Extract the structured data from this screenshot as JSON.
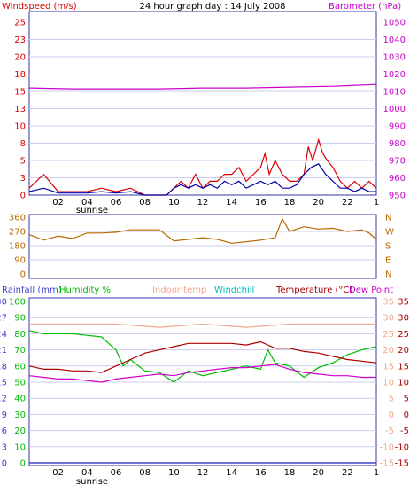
{
  "title": "24 hour graph day : 14 July 2008",
  "colors": {
    "wind": "#dd0000",
    "gust_avg": "#0000aa",
    "baro": "#cc00cc",
    "dir": "#b86800",
    "humidity": "#00bb00",
    "temperature": "#aa0000",
    "dewpoint": "#cc00cc",
    "indoor": "#f0a890",
    "windchill": "#00bbbb",
    "rain": "#4444cc",
    "frame": "#3333aa",
    "grid": "#ccccee"
  },
  "chart_data": [
    {
      "type": "line",
      "name": "wind-barometer",
      "left_label": "Windspeed (m/s)",
      "right_label": "Barometer (hPa)",
      "left_ticks": [
        "25",
        "23",
        "20",
        "18",
        "15",
        "13",
        "10",
        "8",
        "5",
        "3",
        "0"
      ],
      "right_ticks": [
        "1050",
        "1040",
        "1030",
        "1020",
        "1010",
        "1000",
        "990",
        "980",
        "970",
        "960",
        "950"
      ],
      "x_ticks": [
        "02",
        "04",
        "06",
        "08",
        "10",
        "12",
        "14",
        "16",
        "18",
        "20",
        "22",
        "1"
      ],
      "sunrise_label": "sunrise",
      "ylim": [
        0,
        25
      ],
      "y2lim": [
        950,
        1050
      ],
      "series": [
        {
          "role": "wind",
          "x": [
            0,
            1,
            2,
            3,
            4,
            5,
            6,
            7,
            8,
            9,
            9.5,
            10,
            10.5,
            11,
            11.5,
            12,
            12.5,
            13,
            13.5,
            14,
            14.5,
            15,
            15.5,
            16,
            16.3,
            16.6,
            17,
            17.5,
            18,
            18.5,
            19,
            19.3,
            19.6,
            20,
            20.3,
            20.6,
            21,
            21.5,
            22,
            22.5,
            23,
            23.5,
            24
          ],
          "y": [
            1,
            3,
            0.5,
            0.5,
            0.5,
            1,
            0.5,
            1,
            0,
            0,
            0,
            1,
            2,
            1,
            3,
            1,
            2,
            2,
            3,
            3,
            4,
            2,
            3,
            4,
            6,
            3,
            5,
            3,
            2,
            2,
            3,
            7,
            5,
            8,
            6,
            5,
            4,
            2,
            1,
            2,
            1,
            2,
            1
          ]
        },
        {
          "role": "gust_avg",
          "x": [
            0,
            1,
            2,
            3,
            4,
            5,
            6,
            7,
            8,
            9,
            9.5,
            10,
            10.5,
            11,
            11.5,
            12,
            12.5,
            13,
            13.5,
            14,
            14.5,
            15,
            15.5,
            16,
            16.5,
            17,
            17.5,
            18,
            18.5,
            19,
            19.5,
            20,
            20.5,
            21,
            21.5,
            22,
            22.5,
            23,
            23.5,
            24
          ],
          "y": [
            0.5,
            1,
            0.3,
            0.3,
            0.3,
            0.5,
            0.3,
            0.5,
            0,
            0,
            0,
            1,
            1.5,
            1,
            1.5,
            1,
            1.5,
            1,
            2,
            1.5,
            2,
            1,
            1.5,
            2,
            1.5,
            2,
            1,
            1,
            1.5,
            3,
            4,
            4.5,
            3,
            2,
            1,
            1,
            0.5,
            1,
            0.5,
            0.5
          ]
        },
        {
          "role": "baro",
          "x": [
            0,
            3,
            6,
            9,
            12,
            15,
            18,
            21,
            24
          ],
          "y": [
            1012,
            1011.5,
            1011.5,
            1011.5,
            1012,
            1012,
            1012.5,
            1013,
            1014
          ]
        }
      ]
    },
    {
      "type": "line",
      "name": "wind-direction",
      "left_ticks": [
        "360",
        "270",
        "180",
        "90",
        "0"
      ],
      "right_ticks": [
        "N",
        "W",
        "S",
        "E",
        "N"
      ],
      "ylim": [
        0,
        360
      ],
      "series": [
        {
          "role": "dir",
          "x": [
            0,
            1,
            2,
            3,
            4,
            5,
            6,
            7,
            8,
            9,
            9.5,
            10,
            11,
            12,
            13,
            14,
            15,
            16,
            17,
            17.5,
            18,
            19,
            20,
            21,
            22,
            23,
            23.5,
            24
          ],
          "y": [
            250,
            215,
            240,
            225,
            260,
            260,
            265,
            280,
            280,
            280,
            245,
            210,
            220,
            230,
            220,
            195,
            205,
            215,
            230,
            350,
            270,
            300,
            285,
            290,
            270,
            280,
            260,
            220
          ]
        }
      ]
    },
    {
      "type": "line",
      "name": "temperature-humidity",
      "labels": {
        "rainfall": "Rainfall (mm)",
        "humidity": "Humidity %",
        "indoor": "Indoor temp",
        "windchill": "Windchill",
        "temperature": "Temperature (°C)",
        "dewpoint": "Dew Point"
      },
      "rain_ticks": [
        "30",
        "27",
        "24",
        "21",
        "18",
        "15",
        "12",
        "9",
        "6",
        "3",
        "0"
      ],
      "hum_ticks": [
        "100",
        "90",
        "80",
        "70",
        "60",
        "50",
        "40",
        "30",
        "20",
        "10",
        "0"
      ],
      "temp_ticks_a": [
        "35",
        "30",
        "25",
        "20",
        "15",
        "10",
        "5",
        "0",
        "-5",
        "-10",
        "-15"
      ],
      "temp_ticks_b": [
        "35",
        "30",
        "25",
        "20",
        "15",
        "10",
        "5",
        "0",
        "-5",
        "-10",
        "-15"
      ],
      "x_ticks": [
        "02",
        "04",
        "06",
        "08",
        "10",
        "12",
        "14",
        "16",
        "18",
        "20",
        "22",
        "1"
      ],
      "sunrise_label": "sunrise",
      "ylim": [
        -15,
        35
      ],
      "series": [
        {
          "role": "indoor",
          "x": [
            0,
            3,
            6,
            9,
            12,
            15,
            18,
            21,
            24
          ],
          "y": [
            28,
            28,
            28,
            27,
            28,
            27,
            28,
            28,
            28
          ]
        },
        {
          "role": "humidity",
          "x": [
            0,
            1,
            2,
            3,
            4,
            5,
            6,
            6.5,
            7,
            8,
            9,
            10,
            11,
            12,
            13,
            14,
            15,
            16,
            16.5,
            17,
            18,
            19,
            20,
            21,
            22,
            23,
            24
          ],
          "y": [
            82,
            80,
            80,
            80,
            79,
            78,
            70,
            60,
            64,
            57,
            56,
            50,
            57,
            54,
            56,
            58,
            60,
            58,
            70,
            62,
            60,
            53,
            59,
            62,
            67,
            70,
            72
          ]
        },
        {
          "role": "temperature",
          "x": [
            0,
            1,
            2,
            3,
            4,
            5,
            6,
            7,
            8,
            9,
            10,
            11,
            12,
            13,
            14,
            15,
            16,
            17,
            18,
            19,
            20,
            21,
            22,
            23,
            24
          ],
          "y": [
            15,
            14,
            14,
            13.5,
            13.5,
            13,
            15,
            17,
            19,
            20,
            21,
            22,
            22,
            22,
            22,
            21.5,
            22.5,
            20.5,
            20.5,
            19.5,
            19,
            18,
            17,
            16.5,
            16
          ]
        },
        {
          "role": "dewpoint",
          "x": [
            0,
            1,
            2,
            3,
            4,
            5,
            6,
            7,
            8,
            9,
            10,
            11,
            12,
            13,
            14,
            15,
            16,
            17,
            18,
            19,
            20,
            21,
            22,
            23,
            24
          ],
          "y": [
            12,
            11.5,
            11,
            11,
            10.5,
            10,
            11,
            11.5,
            12,
            12.5,
            12,
            13,
            13.5,
            14,
            14.5,
            14.5,
            15,
            15.5,
            14,
            13,
            12.5,
            12,
            12,
            11.5,
            11.5
          ]
        }
      ]
    }
  ]
}
